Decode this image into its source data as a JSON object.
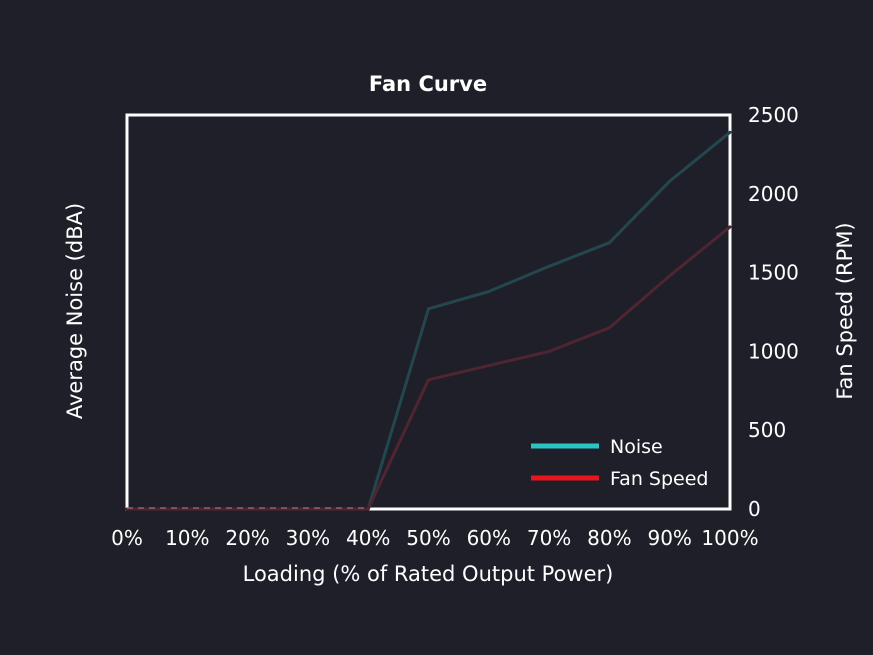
{
  "chart_data": {
    "type": "line",
    "title": "Fan Curve",
    "xlabel": "Loading (% of Rated Output Power)",
    "ylabel_left": "Average Noise (dBA)",
    "ylabel_right": "Fan Speed (RPM)",
    "categories": [
      "0%",
      "10%",
      "20%",
      "30%",
      "40%",
      "50%",
      "60%",
      "70%",
      "80%",
      "90%",
      "100%"
    ],
    "x": [
      0,
      10,
      20,
      30,
      40,
      50,
      60,
      70,
      80,
      90,
      100
    ],
    "y_right_ticks": [
      "0",
      "500",
      "1000",
      "1500",
      "2000",
      "2500"
    ],
    "y_right_lim": [
      0,
      2500
    ],
    "grid": false,
    "legend_position": "bottom-right",
    "series": [
      {
        "name": "Noise",
        "color": "#2bc4c4",
        "plot_color": "#24474f",
        "values": [
          0,
          0,
          0,
          0,
          0,
          1270,
          1380,
          1540,
          1690,
          2080,
          2390
        ]
      },
      {
        "name": "Fan Speed",
        "color": "#e8141e",
        "plot_color": "#4e2530",
        "values": [
          0,
          0,
          0,
          0,
          0,
          820,
          910,
          1000,
          1150,
          1480,
          1790
        ]
      }
    ]
  }
}
